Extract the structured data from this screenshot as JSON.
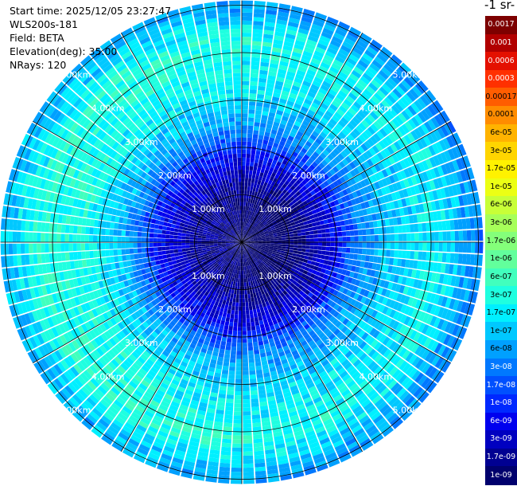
{
  "header": {
    "start_time": "Start time: 2025/12/05 23:27:47",
    "instrument": "WLS200s-181",
    "field": "Field: BETA",
    "elevation": "Elevation(deg): 35.00",
    "nrays": "NRays: 120"
  },
  "colorbar": {
    "unit_label": "-1 sr-",
    "ticks": [
      "0.0017",
      "0.001",
      "0.0006",
      "0.0003",
      "0.00017",
      "0.0001",
      "6e-05",
      "3e-05",
      "1.7e-05",
      "1e-05",
      "6e-06",
      "3e-06",
      "1.7e-06",
      "1e-06",
      "6e-07",
      "3e-07",
      "1.7e-07",
      "1e-07",
      "6e-08",
      "3e-08",
      "1.7e-08",
      "1e-08",
      "6e-09",
      "3e-09",
      "1.7e-09",
      "1e-09"
    ],
    "colors": [
      "#7d0000",
      "#b10000",
      "#e41000",
      "#ff3000",
      "#ff5d00",
      "#ff8c00",
      "#ffb300",
      "#ffd500",
      "#fff200",
      "#ecff14",
      "#c8ff37",
      "#a6ff59",
      "#84ff7a",
      "#62ff9c",
      "#41ffbd",
      "#1fffe0",
      "#00f0ff",
      "#00c8ff",
      "#00a0ff",
      "#0078ff",
      "#0050ff",
      "#0028ff",
      "#0000ee",
      "#0000c0",
      "#000092",
      "#00006d"
    ]
  },
  "chart_data": {
    "type": "heatmap",
    "plot_kind": "polar PPI scan",
    "field": "BETA",
    "elevation_deg": 35.0,
    "n_rays": 120,
    "range_unit": "km",
    "range_rings_km": [
      1,
      2,
      3,
      4,
      5
    ],
    "ring_labels": [
      "1.00km",
      "2.00km",
      "3.00km",
      "4.00km",
      "5.00km"
    ],
    "max_range_km": 5.1,
    "colormap": "jet",
    "color_scale": "log",
    "value_range": [
      1e-09,
      0.0017
    ],
    "radial_profile_approx": [
      {
        "range_km": 0.0,
        "beta": 1e-09
      },
      {
        "range_km": 1.0,
        "beta": 1.5e-09
      },
      {
        "range_km": 1.8,
        "beta": 6e-09
      },
      {
        "range_km": 2.5,
        "beta": 6e-08
      },
      {
        "range_km": 3.2,
        "beta": 1.7e-07
      },
      {
        "range_km": 4.2,
        "beta": 3e-07
      },
      {
        "range_km": 5.0,
        "beta": 6e-08
      }
    ]
  }
}
